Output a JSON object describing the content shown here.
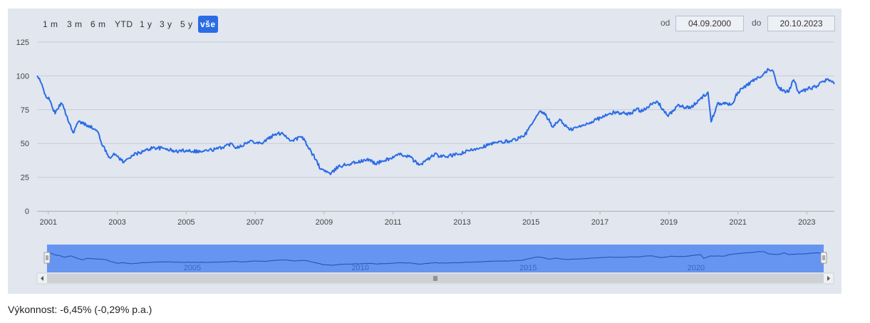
{
  "range_selector": {
    "buttons": [
      {
        "label": "1 m"
      },
      {
        "label": "3 m"
      },
      {
        "label": "6 m"
      },
      {
        "label": "YTD"
      },
      {
        "label": "1 y"
      },
      {
        "label": "3 y"
      },
      {
        "label": "5 y"
      },
      {
        "label": "vše",
        "active": true
      }
    ],
    "from_label": "od",
    "from_value": "04.09.2000",
    "to_label": "do",
    "to_value": "20.10.2023"
  },
  "performance_text": "Výkonnost: -6,45% (-0,29% p.a.)",
  "colors": {
    "line": "#2b6be6",
    "navigator_mask": "#4f86f0",
    "panel_bg": "#e1e6ef",
    "grid": "#c8ccd4"
  },
  "chart_data": {
    "type": "line",
    "x_start": "2000-09-04",
    "x_end": "2023-10-20",
    "ylim": [
      0,
      125
    ],
    "yticks": [
      "0",
      "25",
      "50",
      "75",
      "100",
      "125"
    ],
    "xticks": [
      "2001",
      "2003",
      "2005",
      "2007",
      "2009",
      "2011",
      "2013",
      "2015",
      "2017",
      "2019",
      "2021",
      "2023"
    ],
    "navigator_xticks": [
      "2005",
      "2010",
      "2015",
      "2020"
    ],
    "grid": true,
    "series": [
      {
        "points": [
          [
            "2000-09-04",
            100
          ],
          [
            "2000-10-15",
            95
          ],
          [
            "2000-12-01",
            86
          ],
          [
            "2001-01-15",
            82
          ],
          [
            "2001-03-15",
            72
          ],
          [
            "2001-05-15",
            80
          ],
          [
            "2001-06-15",
            76
          ],
          [
            "2001-09-20",
            58
          ],
          [
            "2001-11-15",
            66
          ],
          [
            "2002-03-15",
            63
          ],
          [
            "2002-06-15",
            58
          ],
          [
            "2002-08-01",
            48
          ],
          [
            "2002-10-10",
            40
          ],
          [
            "2002-12-15",
            42
          ],
          [
            "2003-03-12",
            36
          ],
          [
            "2003-06-01",
            41
          ],
          [
            "2003-10-01",
            44
          ],
          [
            "2004-01-15",
            47
          ],
          [
            "2004-06-15",
            46
          ],
          [
            "2004-09-01",
            44
          ],
          [
            "2005-01-01",
            45
          ],
          [
            "2005-06-01",
            44
          ],
          [
            "2005-12-01",
            46
          ],
          [
            "2006-05-01",
            50
          ],
          [
            "2006-06-15",
            47
          ],
          [
            "2006-12-01",
            52
          ],
          [
            "2007-03-01",
            50
          ],
          [
            "2007-07-15",
            56
          ],
          [
            "2007-10-15",
            58
          ],
          [
            "2008-01-15",
            52
          ],
          [
            "2008-05-15",
            55
          ],
          [
            "2008-07-15",
            47
          ],
          [
            "2008-10-10",
            38
          ],
          [
            "2008-11-20",
            31
          ],
          [
            "2009-01-15",
            30
          ],
          [
            "2009-03-09",
            27
          ],
          [
            "2009-06-01",
            33
          ],
          [
            "2009-12-01",
            36
          ],
          [
            "2010-05-01",
            38
          ],
          [
            "2010-07-01",
            35
          ],
          [
            "2010-12-01",
            39
          ],
          [
            "2011-04-01",
            42
          ],
          [
            "2011-07-01",
            40
          ],
          [
            "2011-10-01",
            34
          ],
          [
            "2012-01-01",
            38
          ],
          [
            "2012-03-15",
            42
          ],
          [
            "2012-06-01",
            40
          ],
          [
            "2012-12-01",
            42
          ],
          [
            "2013-05-15",
            46
          ],
          [
            "2013-12-01",
            50
          ],
          [
            "2014-06-01",
            52
          ],
          [
            "2014-10-15",
            55
          ],
          [
            "2014-12-01",
            60
          ],
          [
            "2015-04-15",
            74
          ],
          [
            "2015-06-15",
            70
          ],
          [
            "2015-08-25",
            62
          ],
          [
            "2015-11-01",
            68
          ],
          [
            "2016-02-11",
            60
          ],
          [
            "2016-06-27",
            63
          ],
          [
            "2016-12-01",
            68
          ],
          [
            "2017-06-01",
            73
          ],
          [
            "2017-12-01",
            72
          ],
          [
            "2018-01-26",
            76
          ],
          [
            "2018-03-01",
            74
          ],
          [
            "2018-09-01",
            81
          ],
          [
            "2018-12-24",
            70
          ],
          [
            "2019-04-01",
            78
          ],
          [
            "2019-08-15",
            76
          ],
          [
            "2019-12-01",
            83
          ],
          [
            "2020-02-19",
            88
          ],
          [
            "2020-03-23",
            66
          ],
          [
            "2020-06-01",
            80
          ],
          [
            "2020-10-30",
            79
          ],
          [
            "2020-12-31",
            88
          ],
          [
            "2021-06-01",
            96
          ],
          [
            "2021-09-01",
            99
          ],
          [
            "2021-11-20",
            105
          ],
          [
            "2022-01-04",
            104
          ],
          [
            "2022-03-08",
            91
          ],
          [
            "2022-06-16",
            88
          ],
          [
            "2022-08-15",
            97
          ],
          [
            "2022-10-12",
            87
          ],
          [
            "2023-01-01",
            90
          ],
          [
            "2023-04-01",
            92
          ],
          [
            "2023-07-31",
            97
          ],
          [
            "2023-10-20",
            94
          ]
        ]
      }
    ]
  }
}
